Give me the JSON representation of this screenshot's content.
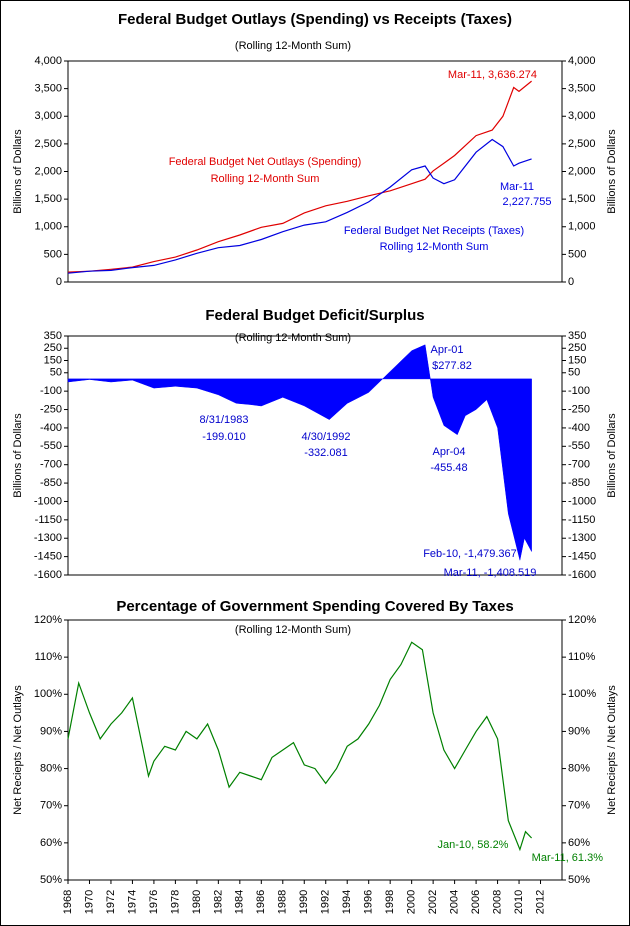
{
  "chart_data": [
    {
      "type": "line",
      "title": "Federal Budget Outlays (Spending) vs Receipts (Taxes)",
      "subtitle": "(Rolling 12-Month Sum)",
      "ylabel": "Billions of Dollars",
      "xlim": [
        1968,
        2014
      ],
      "ylim": [
        0,
        4000
      ],
      "yticks": [
        0,
        500,
        {
          "value": 1000,
          "label": "1,000"
        },
        {
          "value": 1500,
          "label": "1,500"
        },
        {
          "value": 2000,
          "label": "2,000"
        },
        {
          "value": 2500,
          "label": "2,500"
        },
        {
          "value": 3000,
          "label": "3,000"
        },
        {
          "value": 3500,
          "label": "3,500"
        },
        {
          "value": 4000,
          "label": "4,000"
        }
      ],
      "x": [
        1968,
        1970,
        1972,
        1974,
        1976,
        1978,
        1980,
        1982,
        1984,
        1986,
        1988,
        1990,
        1992,
        1994,
        1996,
        1998,
        2000,
        2001.25,
        2002,
        2003,
        2004,
        2006,
        2007.5,
        2008.5,
        2009.5,
        2010,
        2011.17
      ],
      "series": [
        {
          "color": "#e00000",
          "values": [
            180,
            195,
            230,
            270,
            370,
            450,
            580,
            730,
            850,
            990,
            1060,
            1250,
            1380,
            1460,
            1560,
            1650,
            1780,
            1860,
            2010,
            2150,
            2290,
            2650,
            2750,
            3000,
            3520,
            3450,
            3636.274
          ]
        },
        {
          "color": "#0000e0",
          "values": [
            160,
            195,
            210,
            260,
            300,
            400,
            520,
            620,
            660,
            770,
            910,
            1030,
            1090,
            1260,
            1450,
            1720,
            2030,
            2100,
            1880,
            1780,
            1850,
            2350,
            2580,
            2450,
            2100,
            2150,
            2227.755
          ]
        }
      ],
      "annotations": [
        "Mar-11, 3,636.274",
        "Federal Budget Net Outlays (Spending)",
        "Rolling 12-Month Sum",
        "Mar-11",
        "2,227.755",
        "Federal Budget Net Receipts (Taxes)",
        "Rolling 12-Month Sum"
      ]
    },
    {
      "type": "area",
      "title": "Federal Budget Deficit/Surplus",
      "subtitle": "(Rolling 12-Month Sum)",
      "ylabel": "Billions of Dollars",
      "xlim": [
        1968,
        2014
      ],
      "ylim": [
        -1600,
        350
      ],
      "yticks": [
        350,
        250,
        150,
        50,
        -100,
        -250,
        -400,
        -550,
        -700,
        -850,
        -1000,
        -1150,
        -1300,
        -1450,
        -1600
      ],
      "x": [
        1968,
        1970,
        1972,
        1974,
        1976,
        1978,
        1980,
        1982,
        1983.67,
        1985,
        1986,
        1988,
        1990,
        1992.33,
        1994,
        1996,
        1998,
        2000,
        2001.25,
        2002,
        2003,
        2004.25,
        2005,
        2006,
        2007,
        2008,
        2009,
        2010.08,
        2010.5,
        2011.17
      ],
      "series": [
        {
          "color": "#0000ff",
          "values": [
            -25,
            -5,
            -25,
            -10,
            -75,
            -60,
            -75,
            -130,
            -199.01,
            -210,
            -221,
            -150,
            -220,
            -332.081,
            -200,
            -110,
            60,
            230,
            277.82,
            -150,
            -380,
            -455.48,
            -300,
            -250,
            -170,
            -400,
            -1100,
            -1479.367,
            -1300,
            -1408.519
          ]
        }
      ],
      "annotations": [
        "8/31/1983",
        "-199.010",
        "4/30/1992",
        "-332.081",
        "Apr-01",
        "$277.82",
        "Apr-04",
        "-455.48",
        "Feb-10, -1,479.367",
        "Mar-11, -1,408.519"
      ]
    },
    {
      "type": "line",
      "title": "Percentage of Government Spending Covered By Taxes",
      "subtitle": "(Rolling 12-Month Sum)",
      "ylabel": "Net Reciepts / Net Outlays",
      "xlim": [
        1968,
        2014
      ],
      "ylim": [
        50,
        120
      ],
      "yticks": [
        {
          "value": 50,
          "label": "50%"
        },
        {
          "value": 60,
          "label": "60%"
        },
        {
          "value": 70,
          "label": "70%"
        },
        {
          "value": 80,
          "label": "80%"
        },
        {
          "value": 90,
          "label": "90%"
        },
        {
          "value": 100,
          "label": "100%"
        },
        {
          "value": 110,
          "label": "110%"
        },
        {
          "value": 120,
          "label": "120%"
        }
      ],
      "xticks": [
        1968,
        1970,
        1972,
        1974,
        1976,
        1978,
        1980,
        1982,
        1984,
        1986,
        1988,
        1990,
        1992,
        1994,
        1996,
        1998,
        2000,
        2002,
        2004,
        2006,
        2008,
        2010,
        2012
      ],
      "x": [
        1968,
        1969,
        1970,
        1971,
        1972,
        1973,
        1974,
        1975,
        1975.5,
        1976,
        1977,
        1978,
        1979,
        1980,
        1981,
        1982,
        1983,
        1984,
        1985,
        1986,
        1987,
        1988,
        1989,
        1990,
        1991,
        1992,
        1993,
        1994,
        1995,
        1996,
        1997,
        1998,
        1999,
        2000,
        2001,
        2002,
        2003,
        2004,
        2005,
        2006,
        2007,
        2008,
        2009,
        2010.08,
        2010.6,
        2011.17
      ],
      "series": [
        {
          "color": "#008000",
          "values": [
            88,
            103,
            95,
            88,
            92,
            95,
            99,
            85,
            78,
            82,
            86,
            85,
            90,
            88,
            92,
            85,
            75,
            79,
            78,
            77,
            83,
            85,
            87,
            81,
            80,
            76,
            80,
            86,
            88,
            92,
            97,
            104,
            108,
            114,
            112,
            95,
            85,
            80,
            85,
            90,
            94,
            88,
            66,
            58.2,
            63,
            61.3
          ]
        }
      ],
      "annotations": [
        "Jan-10, 58.2%",
        "Mar-11, 61.3%"
      ]
    }
  ]
}
